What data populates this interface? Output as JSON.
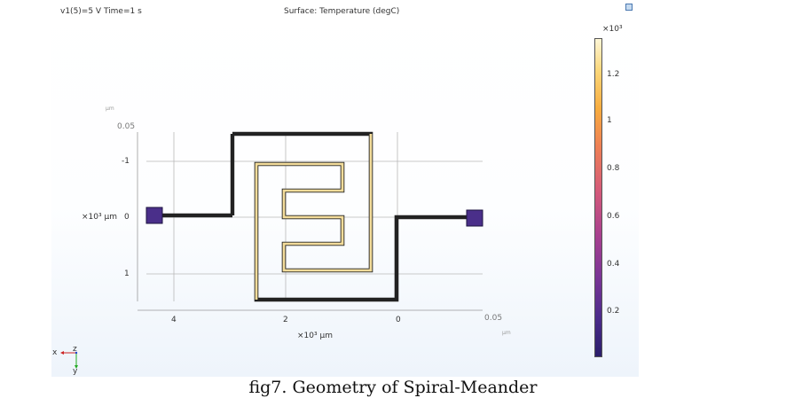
{
  "header": {
    "params": "v1(5)=5 V Time=1 s",
    "plot_title": "Surface: Temperature (degC)"
  },
  "axes": {
    "y_top_unit": "µm",
    "y_top_value": "0.05",
    "y_ticks": [
      "-1",
      "0",
      "1"
    ],
    "y_multiplier": "×10³ µm",
    "x_ticks": [
      "4",
      "2",
      "0"
    ],
    "x_right_value": "0.05",
    "x_right_unit": "µm",
    "x_multiplier": "×10³ µm"
  },
  "colorbar": {
    "multiplier": "×10³",
    "ticks": [
      "1.2",
      "1",
      "0.8",
      "0.6",
      "0.4",
      "0.2"
    ]
  },
  "triad": {
    "x": "x",
    "z": "z",
    "y": "y"
  },
  "caption": "fig7. Geometry of Spiral-Meander",
  "colors": {
    "axis_tick": "#333333",
    "grid": "#b8b8b8",
    "pad": "#4a2f8a",
    "hot": "#f3dc9a"
  },
  "icons": [
    "corner-window-icon",
    "axis-triad-icon"
  ]
}
